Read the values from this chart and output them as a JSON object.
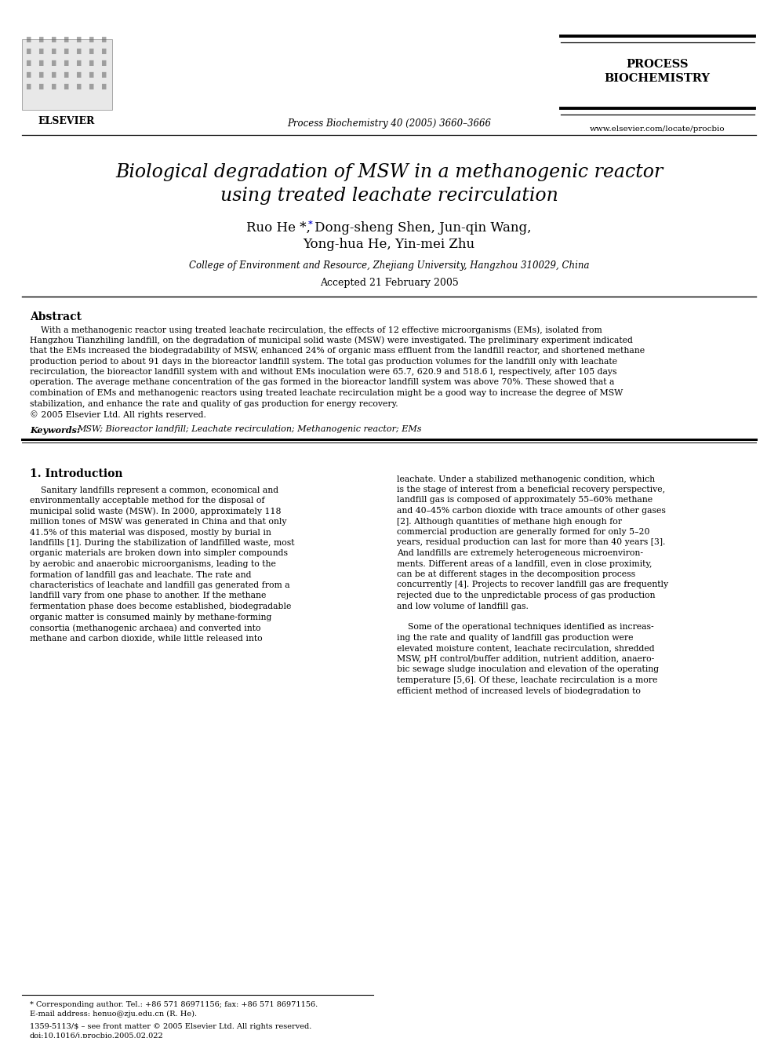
{
  "title_line1": "Biological degradation of MSW in a methanogenic reactor",
  "title_line2": "using treated leachate recirculation",
  "authors_line1": "Ruo He *, Dong-sheng Shen, Jun-qin Wang,",
  "authors_line2": "Yong-hua He, Yin-mei Zhu",
  "affiliation": "College of Environment and Resource, Zhejiang University, Hangzhou 310029, China",
  "accepted": "Accepted 21 February 2005",
  "journal_header": "Process Biochemistry 40 (2005) 3660–3666",
  "journal_name_line1": "PROCESS",
  "journal_name_line2": "BIOCHEMISTRY",
  "journal_url": "www.elsevier.com/locate/procbio",
  "elsevier_text": "ELSEVIER",
  "abstract_title": "Abstract",
  "keywords_label": "Keywords:",
  "keywords_text": "MSW; Bioreactor landfill; Leachate recirculation; Methanogenic reactor; EMs",
  "section1_title": "1. Introduction",
  "footnote_line1": "* Corresponding author. Tel.: +86 571 86971156; fax: +86 571 86971156.",
  "footnote_line2": "E-mail address: henuo@zju.edu.cn (R. He).",
  "footnote_line3": "1359-5113/$ – see front matter © 2005 Elsevier Ltd. All rights reserved.",
  "footnote_line4": "doi:10.1016/j.procbio.2005.02.022",
  "abstract_lines": [
    "    With a methanogenic reactor using treated leachate recirculation, the effects of 12 effective microorganisms (EMs), isolated from",
    "Hangzhou Tianzhiling landfill, on the degradation of municipal solid waste (MSW) were investigated. The preliminary experiment indicated",
    "that the EMs increased the biodegradability of MSW, enhanced 24% of organic mass effluent from the landfill reactor, and shortened methane",
    "production period to about 91 days in the bioreactor landfill system. The total gas production volumes for the landfill only with leachate",
    "recirculation, the bioreactor landfill system with and without EMs inoculation were 65.7, 620.9 and 518.6 l, respectively, after 105 days",
    "operation. The average methane concentration of the gas formed in the bioreactor landfill system was above 70%. These showed that a",
    "combination of EMs and methanogenic reactors using treated leachate recirculation might be a good way to increase the degree of MSW",
    "stabilization, and enhance the rate and quality of gas production for energy recovery.",
    "© 2005 Elsevier Ltd. All rights reserved."
  ],
  "left_col_lines": [
    "    Sanitary landfills represent a common, economical and",
    "environmentally acceptable method for the disposal of",
    "municipal solid waste (MSW). In 2000, approximately 118",
    "million tones of MSW was generated in China and that only",
    "41.5% of this material was disposed, mostly by burial in",
    "landfills [1]. During the stabilization of landfilled waste, most",
    "organic materials are broken down into simpler compounds",
    "by aerobic and anaerobic microorganisms, leading to the",
    "formation of landfill gas and leachate. The rate and",
    "characteristics of leachate and landfill gas generated from a",
    "landfill vary from one phase to another. If the methane",
    "fermentation phase does become established, biodegradable",
    "organic matter is consumed mainly by methane-forming",
    "consortia (methanogenic archaea) and converted into",
    "methane and carbon dioxide, while little released into"
  ],
  "right_col_lines": [
    "leachate. Under a stabilized methanogenic condition, which",
    "is the stage of interest from a beneficial recovery perspective,",
    "landfill gas is composed of approximately 55–60% methane",
    "and 40–45% carbon dioxide with trace amounts of other gases",
    "[2]. Although quantities of methane high enough for",
    "commercial production are generally formed for only 5–20",
    "years, residual production can last for more than 40 years [3].",
    "And landfills are extremely heterogeneous microenviron-",
    "ments. Different areas of a landfill, even in close proximity,",
    "can be at different stages in the decomposition process",
    "concurrently [4]. Projects to recover landfill gas are frequently",
    "rejected due to the unpredictable process of gas production",
    "and low volume of landfill gas.",
    "",
    "    Some of the operational techniques identified as increas-",
    "ing the rate and quality of landfill gas production were",
    "elevated moisture content, leachate recirculation, shredded",
    "MSW, pH control/buffer addition, nutrient addition, anaero-",
    "bic sewage sludge inoculation and elevation of the operating",
    "temperature [5,6]. Of these, leachate recirculation is a more",
    "efficient method of increased levels of biodegradation to"
  ],
  "background_color": "#ffffff",
  "text_color": "#000000",
  "star_color": "#0000cc"
}
